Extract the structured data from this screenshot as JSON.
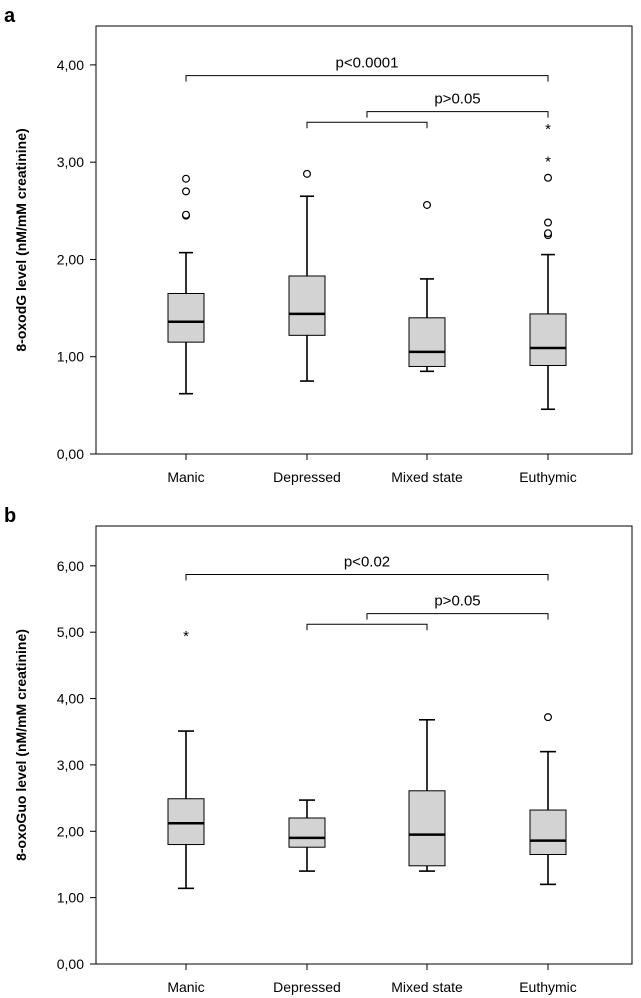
{
  "chart_data": [
    {
      "panel": "a",
      "type": "box",
      "ylabel": "8-oxodG level (nM/mM creatinine)",
      "ylim": [
        0,
        4.4
      ],
      "yticks": [
        "0,00",
        "1,00",
        "2,00",
        "3,00",
        "4,00"
      ],
      "categories": [
        "Manic",
        "Depressed",
        "Mixed state",
        "Euthymic"
      ],
      "boxes": [
        {
          "min": 0.62,
          "q1": 1.15,
          "median": 1.36,
          "q3": 1.65,
          "max": 2.07,
          "outliers": [
            2.45,
            2.46,
            2.7,
            2.83
          ],
          "extremes": []
        },
        {
          "min": 0.75,
          "q1": 1.22,
          "median": 1.44,
          "q3": 1.83,
          "max": 2.65,
          "outliers": [
            2.88
          ],
          "extremes": []
        },
        {
          "min": 0.85,
          "q1": 0.9,
          "median": 1.05,
          "q3": 1.4,
          "max": 1.8,
          "outliers": [
            2.56
          ],
          "extremes": []
        },
        {
          "min": 0.46,
          "q1": 0.91,
          "median": 1.09,
          "q3": 1.44,
          "max": 2.05,
          "outliers": [
            2.25,
            2.27,
            2.38,
            2.84
          ],
          "extremes": [
            3.05,
            3.38
          ]
        }
      ],
      "brackets": [
        {
          "from": 0,
          "to": 3,
          "y": 3.89,
          "label": "p<0.0001"
        },
        {
          "from": 1,
          "to": 2,
          "y": 3.41,
          "label": ""
        },
        {
          "from": 1.5,
          "to": 3,
          "y": 3.52,
          "label": "p>0.05"
        }
      ]
    },
    {
      "panel": "b",
      "type": "box",
      "ylabel": "8-oxoGuo level (nM/mM creatinine)",
      "ylim": [
        0,
        6.6
      ],
      "yticks": [
        "0,00",
        "1,00",
        "2,00",
        "3,00",
        "4,00",
        "5,00",
        "6,00"
      ],
      "categories": [
        "Manic",
        "Depressed",
        "Mixed state",
        "Euthymic"
      ],
      "boxes": [
        {
          "min": 1.14,
          "q1": 1.8,
          "median": 2.12,
          "q3": 2.49,
          "max": 3.51,
          "outliers": [],
          "extremes": [
            5.0
          ]
        },
        {
          "min": 1.4,
          "q1": 1.76,
          "median": 1.9,
          "q3": 2.2,
          "max": 2.47,
          "outliers": [],
          "extremes": []
        },
        {
          "min": 1.4,
          "q1": 1.48,
          "median": 1.95,
          "q3": 2.61,
          "max": 3.68,
          "outliers": [],
          "extremes": []
        },
        {
          "min": 1.2,
          "q1": 1.65,
          "median": 1.86,
          "q3": 2.32,
          "max": 3.2,
          "outliers": [
            3.72
          ],
          "extremes": []
        }
      ],
      "brackets": [
        {
          "from": 0,
          "to": 3,
          "y": 5.87,
          "label": "p<0.02"
        },
        {
          "from": 1,
          "to": 2,
          "y": 5.12,
          "label": ""
        },
        {
          "from": 1.5,
          "to": 3,
          "y": 5.28,
          "label": "p>0.05"
        }
      ]
    }
  ]
}
